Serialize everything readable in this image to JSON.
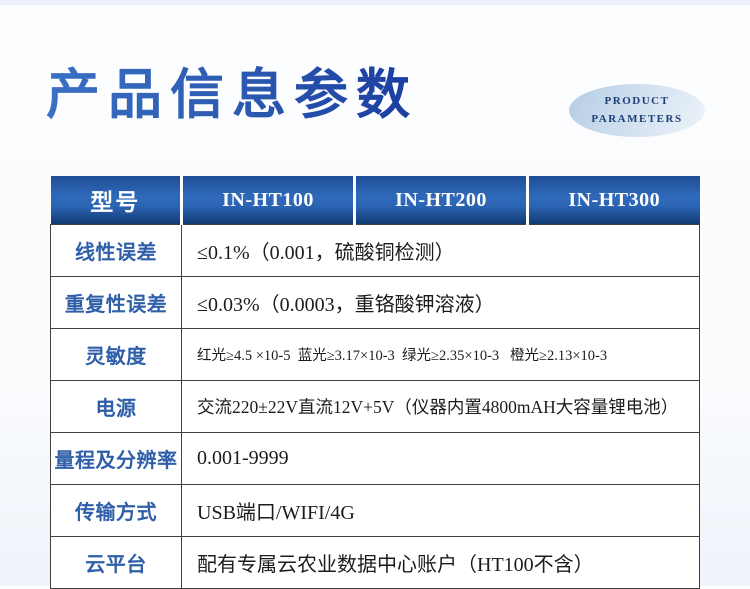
{
  "page": {
    "title": "产品信息参数",
    "badge": {
      "line1": "PRODUCT",
      "line2": "PARAMETERS"
    }
  },
  "colors": {
    "title_gradient_start": "#3a70c4",
    "title_gradient_end": "#1a3da0",
    "header_blue_top": "#1d4d95",
    "header_blue_mid": "#3069ba",
    "header_blue_bottom": "#123a74",
    "label_blue": "#2e5fa8",
    "border_dark": "#404040",
    "badge_fill_start": "#b5cce5",
    "badge_fill_end": "#edf4fa",
    "badge_text": "#1e3f77",
    "top_strip": "#edf1fb"
  },
  "table": {
    "header": {
      "label": "型号",
      "models": [
        "IN-HT100",
        "IN-HT200",
        "IN-HT300"
      ]
    },
    "rows": [
      {
        "label": "线性误差",
        "value": "≤0.1%（0.001，硫酸铜检测）"
      },
      {
        "label": "重复性误差",
        "value": "≤0.03%（0.0003，重铬酸钾溶液）"
      },
      {
        "label": "灵敏度",
        "value": "红光≥4.5 ×10-5  蓝光≥3.17×10-3  绿光≥2.35×10-3   橙光≥2.13×10-3"
      },
      {
        "label": "电源",
        "value": "交流220±22V直流12V+5V（仪器内置4800mAH大容量锂电池）"
      },
      {
        "label": "量程及分辨率",
        "value": "0.001-9999"
      },
      {
        "label": "传输方式",
        "value": "USB端口/WIFI/4G"
      },
      {
        "label": "云平台",
        "value": "配有专属云农业数据中心账户（HT100不含）"
      }
    ]
  }
}
